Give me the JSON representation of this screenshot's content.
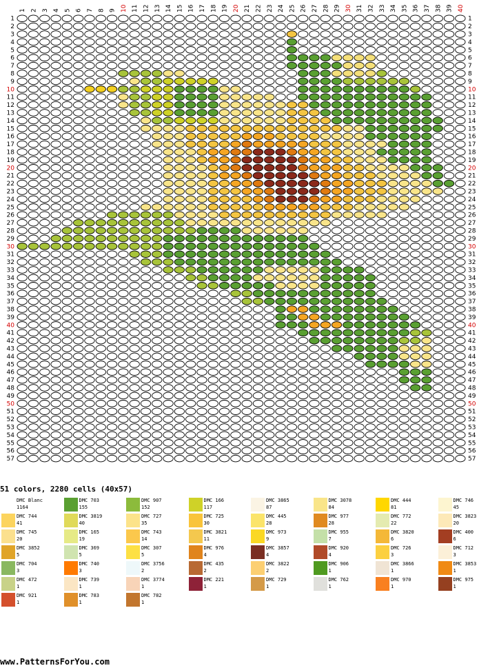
{
  "pattern": {
    "cols": 40,
    "rows": 57,
    "rows_map": [
      "AAAAAAAAAAAAAAAAAAAAAAAAAAAAAAAAAAAAAAAA",
      "AAAAAAAAAAAAAAAAAAAAAAAAAAAAAAAAAAAAAAAA",
      "AAAAAAAAAAAAAAAAAAAAAAAbIbAAAAAAAAAAAAAA",
      "AAAAAAAAAAAAAAAAAAAAAAAABAAAAAAAAAAAAAAA",
      "AAAAAAAAAAAAAAAAAAAAAAAABAAAAAAAAAAAAAAA",
      "AAAAAAAAAAAAAAAAAAAAAAAABBBBFFFFAAAAAAAA",
      "AAAAAAAAAAAAAAAAAAAAAAAABBBBBFFFAAAAAAAA",
      "AAAAAAAAACCCCHHAAAAAAAAAABBBFFFFCAAAAAAA",
      "AAAAAAAAAAHCCDDDDDAAAAAAABBBBCCCCCCAAAAA",
      "AAAAAAGGGCCDDDBBBBHHAAAAABBBBBBBBBBCAAAA",
      "AAAAAAAAAHCCDDBBBBHHHHHAABBBBBBBBBBBBAAA",
      "AAAAAAAAAHCCDDBBBBHHHHHHIIBBBBBBBBBBBAAA",
      "AAAAAAAAAACCDDBBBBHHHHHHIIIBBBBBBBBBBAAA",
      "AAAAAAAAAAAHCCDDDDHHHHHHIIIIBBBBBBBBBBAA",
      "AAAAAAAAAAAHHHHIIIIIIIIIIIIIIHHBBBBBBBAA",
      "AAAAAAAAAAAAHHHIIIIIMMMIIIIHHHHBBBBBBAAA",
      "AAAAAAAAAAAAHHHIIIIMOMMMMMIIIHHHHBBBBAAA",
      "AAAAAAAAAAAAAHHHIMMOOPPPOMMIIHHHBBBBBAAA",
      "AAAAAAAAAAAAAHHHIMMOPPPPPOMMIIHHHBBBBAAA",
      "AAAAAAAAAAAAAHHHHIMOPPPPPOMMMIIHHHHBBBAA",
      "AAAAAAAAAAAAAHHHHIMMOPPPPPOMMIIIHHHHBBAA",
      "AAAAAAAAAAAAAHHHHIIMMOPPPPPOMMIIIHHHHBBA",
      "AAAAAAAAAAAAAHHHHIIIMMOPPPPOMMIIIHHHHHAA",
      "AAAAAAAAAAAAAHHHHIIIIMOPPPOMMIIIHHHHAAAA",
      "AAAAAAAAAAAHHHHHHIIIIIMMMMMIIIHHHHHAAAAA",
      "AAAAAAAACCCCCCHHHHIIIIIIIIIIHHHHHAAAAAAA",
      "AAAAACCCCCCCCCCHHHHHHHHHHHHHAAAAAAAAAAAA",
      "AAAACCCCCCCCCCCCBBBBHHHHHHAAAAAAAAAAAAAA",
      "AAACCCCCCCCCCBBBBBBBBBBBBBAAAAAAAAAAAAAA",
      "CCCCCCCCCCCCCBBBBBBBBBBBBBBAAAAAAAAAAAAA",
      "AAAAAAAAAACCCBBBBBBBBBBBBBBBAAAAAAAAAAAA",
      "AAAAAAAAAAACCCBBBBBBBBBBBBBBBAAAAAAAAAAA",
      "AAAAAAAAAAAAACCCBBBBBBHHHHHBBBBAAAAAAAAA",
      "AAAAAAAAAAAAAAACCBBBBHHHHHHBBBBBAAAAAAAA",
      "AAAAAAAAAAAAAAAACCBBBBBHHHHBBBBBAAAAAAAA",
      "AAAAAAAAAAAAAAAAAAACCBBBBBBBBBBBAAAAAAAA",
      "AAAAAAAAAAAAAAAAAAAACCBBBBBBBBBBBAAAAAAA",
      "AAAAAAAAAAAAAAAAAAAAAAABMMBBBBBBBBAAAAAA",
      "AAAAAAAAAAAAAAAAAAAAAAABBMMBBBBBBBBAAAAA",
      "AAAAAAAAAAAAAAAAAAAAAAABBBMMMBBBBBBBAAAA",
      "AAAAAAAAAAAAAAAAAAAAAAAAABBBBBBBBBBCCAAA",
      "AAAAAAAAAAAAAAAAAAAAAAAAAABBBBBBBBCCHAAA",
      "AAAAAAAAAAAAAAAAAAAAAAAAAAAABBBBBBHHHAAA",
      "AAAAAAAAAAAAAAAAAAAAAAAAAAAAAABBBBHHHAAA",
      "AAAAAAAAAAAAAAAAAAAAAAAAAAAAAAABBBBHHAAA",
      "AAAAAAAAAAAAAAAAAAAAAAAAAAAAAAAAAABBBAAA",
      "AAAAAAAAAAAAAAAAAAAAAAAAAAAAAAAAAABBBAAA",
      "AAAAAAAAAAAAAAAAAAAAAAAAAAAAAAAAAAABBAAA",
      "AAAAAAAAAAAAAAAAAAAAAAAAAAAAAAAAAAAAAAAA",
      "AAAAAAAAAAAAAAAAAAAAAAAAAAAAAAAAAAAAAAAA",
      "AAAAAAAAAAAAAAAAAAAAAAAAAAAAAAAAAAAAAAAA",
      "AAAAAAAAAAAAAAAAAAAAAAAAAAAAAAAAAAAAAAAA",
      "AAAAAAAAAAAAAAAAAAAAAAAAAAAAAAAAAAAAAAAA",
      "AAAAAAAAAAAAAAAAAAAAAAAAAAAAAAAAAAAAAAAA",
      "AAAAAAAAAAAAAAAAAAAAAAAAAAAAAAAAAAAAAAAA",
      "AAAAAAAAAAAAAAAAAAAAAAAAAAAAAAAAAAAAAAAA",
      "AAAAAAAAAAAAAAAAAAAAAAAAAAAAAAAAAAAAAAAA"
    ],
    "palette": {
      "A": "#ffffff",
      "B": "#5aa032",
      "C": "#a8c43a",
      "D": "#cfd228",
      "E": "#fbf4e4",
      "F": "#f5e07a",
      "G": "#f4d020",
      "H": "#f9e58a",
      "I": "#f4c542",
      "J": "#e8c840",
      "K": "#fbe39a",
      "L": "#f8d890",
      "M": "#f5a623",
      "N": "#9c2b1b",
      "O": "#e07a10",
      "P": "#8b2a1a"
    }
  },
  "summary": "51 colors, 2280 cells (40x57)",
  "legend": [
    {
      "name": "DMC Blanc",
      "count": "1164",
      "color": "#ffffff"
    },
    {
      "name": "DMC 703",
      "count": "155",
      "color": "#5aa032"
    },
    {
      "name": "DMC 907",
      "count": "152",
      "color": "#8cbb3c"
    },
    {
      "name": "DMC 166",
      "count": "117",
      "color": "#cfd228"
    },
    {
      "name": "DMC 3865",
      "count": "87",
      "color": "#fbf4e4"
    },
    {
      "name": "DMC 3078",
      "count": "84",
      "color": "#f9e58a"
    },
    {
      "name": "DMC 444",
      "count": "81",
      "color": "#ffd700"
    },
    {
      "name": "DMC 746",
      "count": "45",
      "color": "#fdf5d0"
    },
    {
      "name": "DMC 744",
      "count": "41",
      "color": "#fcd45e"
    },
    {
      "name": "DMC 3819",
      "count": "40",
      "color": "#e0da5a"
    },
    {
      "name": "DMC 727",
      "count": "35",
      "color": "#fce38a"
    },
    {
      "name": "DMC 725",
      "count": "30",
      "color": "#f9c43a"
    },
    {
      "name": "DMC 445",
      "count": "28",
      "color": "#fbe46a"
    },
    {
      "name": "DMC 977",
      "count": "28",
      "color": "#e08a20"
    },
    {
      "name": "DMC 772",
      "count": "22",
      "color": "#e4ebb0"
    },
    {
      "name": "DMC 3823",
      "count": "20",
      "color": "#fde9b8"
    },
    {
      "name": "DMC 745",
      "count": "20",
      "color": "#fbe08e"
    },
    {
      "name": "DMC 165",
      "count": "19",
      "color": "#e6ea86"
    },
    {
      "name": "DMC 743",
      "count": "14",
      "color": "#fbc84c"
    },
    {
      "name": "DMC 3821",
      "count": "11",
      "color": "#f4c84e"
    },
    {
      "name": "DMC 973",
      "count": "9",
      "color": "#fad824"
    },
    {
      "name": "DMC 955",
      "count": "7",
      "color": "#c4e0a8"
    },
    {
      "name": "DMC 3820",
      "count": "6",
      "color": "#f4b838"
    },
    {
      "name": "DMC 400",
      "count": "6",
      "color": "#a33e22"
    },
    {
      "name": "DMC 3852",
      "count": "5",
      "color": "#e0a428"
    },
    {
      "name": "DMC 369",
      "count": "5",
      "color": "#d0e4b0"
    },
    {
      "name": "DMC 307",
      "count": "5",
      "color": "#fde044"
    },
    {
      "name": "DMC 976",
      "count": "4",
      "color": "#e0841c"
    },
    {
      "name": "DMC 3857",
      "count": "4",
      "color": "#7a2e22"
    },
    {
      "name": "DMC 920",
      "count": "4",
      "color": "#b04a28"
    },
    {
      "name": "DMC 726",
      "count": "3",
      "color": "#fcd040"
    },
    {
      "name": "DMC 712",
      "count": "3",
      "color": "#fcf0d8"
    },
    {
      "name": "DMC 704",
      "count": "3",
      "color": "#8ab860"
    },
    {
      "name": "DMC 740",
      "count": "3",
      "color": "#ff7a00"
    },
    {
      "name": "DMC 3756",
      "count": "2",
      "color": "#eef8fa"
    },
    {
      "name": "DMC 435",
      "count": "2",
      "color": "#b86a34"
    },
    {
      "name": "DMC 3822",
      "count": "2",
      "color": "#fccf72"
    },
    {
      "name": "DMC 906",
      "count": "1",
      "color": "#4f9a20"
    },
    {
      "name": "DMC 3866",
      "count": "1",
      "color": "#f0e4d4"
    },
    {
      "name": "DMC 3853",
      "count": "1",
      "color": "#f08a14"
    },
    {
      "name": "DMC 472",
      "count": "1",
      "color": "#c8d288"
    },
    {
      "name": "DMC 739",
      "count": "1",
      "color": "#fbe6c4"
    },
    {
      "name": "DMC 3774",
      "count": "1",
      "color": "#f8d4b8"
    },
    {
      "name": "DMC 221",
      "count": "1",
      "color": "#8e2238"
    },
    {
      "name": "DMC 729",
      "count": "1",
      "color": "#d49a48"
    },
    {
      "name": "DMC 762",
      "count": "1",
      "color": "#e0e0dc"
    },
    {
      "name": "DMC 970",
      "count": "1",
      "color": "#f98020"
    },
    {
      "name": "DMC 975",
      "count": "1",
      "color": "#954020"
    },
    {
      "name": "DMC 921",
      "count": "1",
      "color": "#d4502c"
    },
    {
      "name": "DMC 783",
      "count": "1",
      "color": "#e0902a"
    },
    {
      "name": "DMC 782",
      "count": "1",
      "color": "#c2762e"
    }
  ],
  "footer": "www.PatternsForYou.com"
}
